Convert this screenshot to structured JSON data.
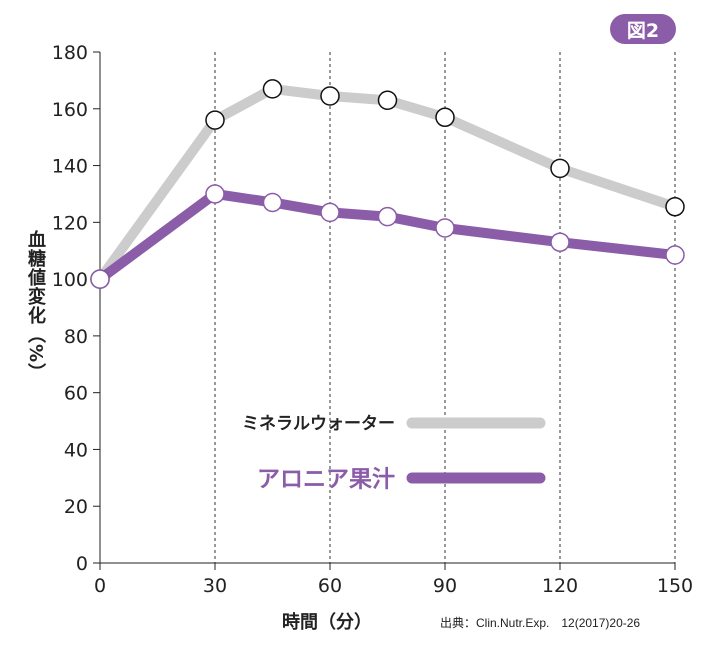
{
  "badge": "図2",
  "source": "出典：Clin.Nutr.Exp.　12(2017)20-26",
  "chart_data": {
    "type": "line",
    "xlabel": "時間（分）",
    "ylabel": "血糖値変化（%）",
    "x": [
      0,
      30,
      45,
      60,
      75,
      90,
      120,
      150
    ],
    "xticks": [
      0,
      30,
      60,
      90,
      120,
      150
    ],
    "yticks": [
      0,
      20,
      40,
      60,
      80,
      100,
      120,
      140,
      160,
      180
    ],
    "xlim": [
      0,
      150
    ],
    "ylim": [
      0,
      180
    ],
    "grid": "vertical dashed",
    "legend_position": "center",
    "series": [
      {
        "name": "ミネラルウォーター",
        "color": "#cccccc",
        "marker_edge": "#111111",
        "values": [
          100,
          156,
          167,
          164.5,
          163,
          157,
          139,
          125.5
        ]
      },
      {
        "name": "アロニア果汁",
        "color": "#8b5ca8",
        "marker_edge": "#8b5ca8",
        "values": [
          100,
          130,
          127,
          123.5,
          122,
          118,
          113,
          108.5
        ]
      }
    ]
  }
}
